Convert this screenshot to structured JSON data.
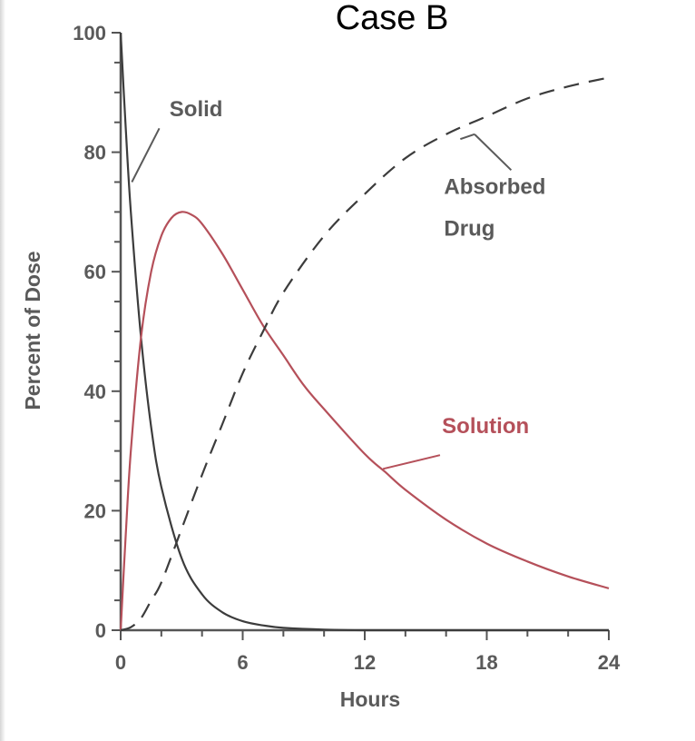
{
  "chart_data": {
    "type": "line",
    "title": "Case B",
    "xlabel": "Hours",
    "ylabel": "Percent of Dose",
    "xlim": [
      0,
      24
    ],
    "ylim": [
      0,
      100
    ],
    "xticks": [
      0,
      6,
      12,
      18,
      24
    ],
    "yticks": [
      0,
      20,
      40,
      60,
      80,
      100
    ],
    "grid": false,
    "colors": {
      "axis": "#555555",
      "solid": "#3c3c3c",
      "solution": "#b5505a",
      "absorbed": "#3c3c3c"
    },
    "series": [
      {
        "name": "Solid",
        "style": "solid",
        "x": [
          0,
          0.25,
          0.5,
          1,
          1.5,
          2,
          3,
          4,
          5,
          6,
          7,
          8,
          10,
          12,
          15,
          18,
          21,
          24
        ],
        "y": [
          100,
          84,
          70,
          49,
          34,
          24,
          12,
          6,
          3,
          1.5,
          0.8,
          0.4,
          0.1,
          0,
          0,
          0,
          0,
          0
        ]
      },
      {
        "name": "Solution",
        "style": "solid",
        "x": [
          0,
          0.25,
          0.5,
          1,
          1.5,
          2,
          2.5,
          3,
          3.5,
          4,
          5,
          6,
          7,
          8,
          9,
          10,
          12,
          13,
          14,
          16,
          18,
          20,
          22,
          24
        ],
        "y": [
          0,
          16,
          30,
          49,
          60,
          66,
          69,
          70,
          69.5,
          68,
          63,
          57,
          51,
          46,
          41,
          37,
          29.5,
          26.5,
          23.5,
          18.5,
          14.5,
          11.5,
          9,
          7
        ]
      },
      {
        "name": "Absorbed Drug",
        "style": "dashed",
        "x": [
          0,
          0.5,
          1,
          1.5,
          2,
          3,
          4,
          5,
          6,
          7,
          8,
          10,
          12,
          14,
          16,
          18,
          20,
          22,
          24
        ],
        "y": [
          0,
          0.5,
          2,
          5,
          8,
          17,
          26,
          34.5,
          43,
          50,
          56.5,
          66,
          73,
          79,
          83,
          86,
          89,
          91,
          92.5
        ]
      }
    ],
    "annotations": [
      {
        "label": "Solid",
        "x": 2.4,
        "y": 86,
        "pointer_to": [
          0.5,
          75
        ],
        "color": "#5a5a5a"
      },
      {
        "label": "Absorbed",
        "x": 15.9,
        "y": 73,
        "pointer_to": [
          17.5,
          83
        ],
        "color": "#5a5a5a"
      },
      {
        "label": "Drug",
        "x": 15.9,
        "y": 66,
        "color": "#5a5a5a"
      },
      {
        "label": "Solution",
        "x": 15.8,
        "y": 33,
        "pointer_to": [
          13,
          27
        ],
        "color": "#b5505a"
      }
    ]
  }
}
